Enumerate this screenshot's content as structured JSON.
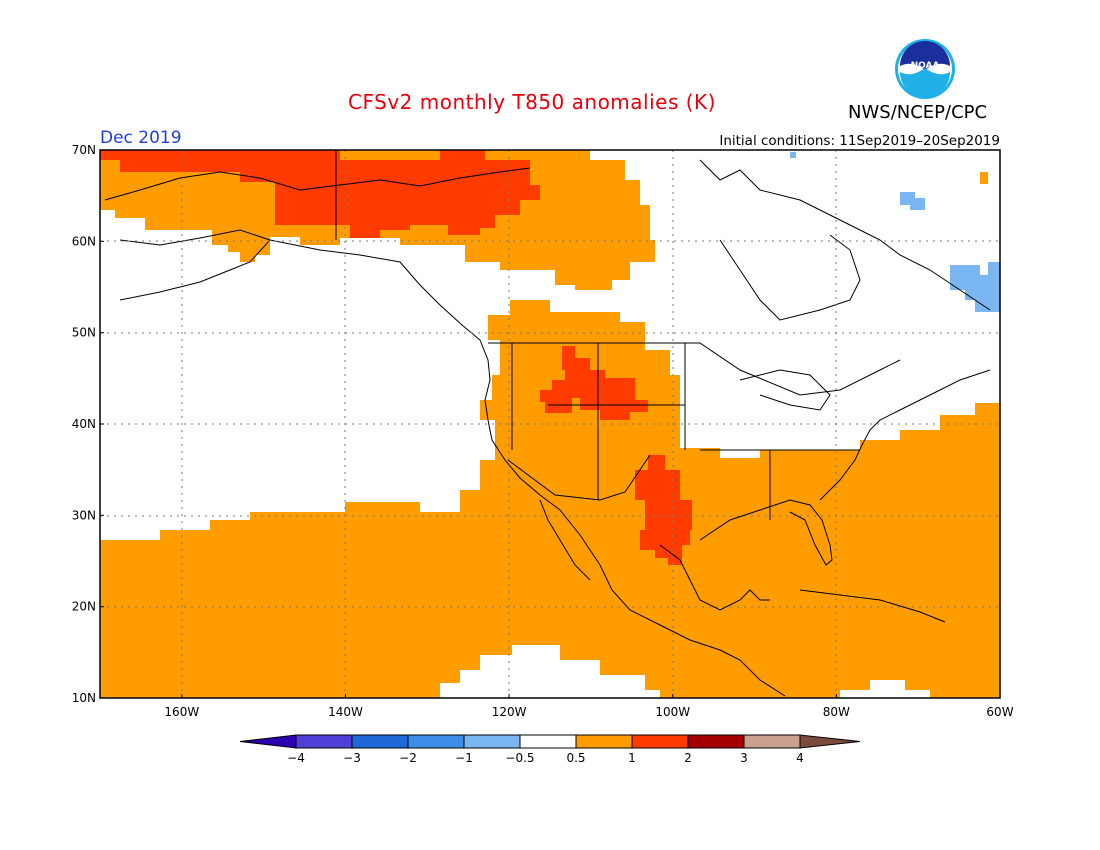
{
  "title": "CFSv2 monthly T850 anomalies (K)",
  "organization": "NWS/NCEP/CPC",
  "valid_month": "Dec 2019",
  "initial_conditions": "Initial conditions: 11Sep2019–20Sep2019",
  "logo_icon": "noaa-logo-icon",
  "logo_text": "NOAA",
  "map": {
    "lon_range": [
      -170,
      -60
    ],
    "lat_range": [
      10,
      70
    ],
    "lat_labels": [
      "70N",
      "60N",
      "50N",
      "40N",
      "30N",
      "20N",
      "10N"
    ],
    "lon_labels": [
      "160W",
      "140W",
      "120W",
      "100W",
      "80W",
      "60W"
    ]
  },
  "colorbar": {
    "labels": [
      "−4",
      "−3",
      "−2",
      "−1",
      "−0.5",
      "0.5",
      "1",
      "2",
      "3",
      "4"
    ],
    "colors": [
      "#2a00b0",
      "#4f3fd6",
      "#1f68d8",
      "#3d8ee8",
      "#7ab6f2",
      "#ffffff",
      "#ff9d00",
      "#ff3b00",
      "#a50000",
      "#c9a090",
      "#7a4a3a"
    ]
  },
  "anomaly_colors": {
    "low_negative": "#7ab6f2",
    "warm_0_5_to_1": "#ff9d00",
    "warm_1_to_2": "#ff3b00"
  }
}
